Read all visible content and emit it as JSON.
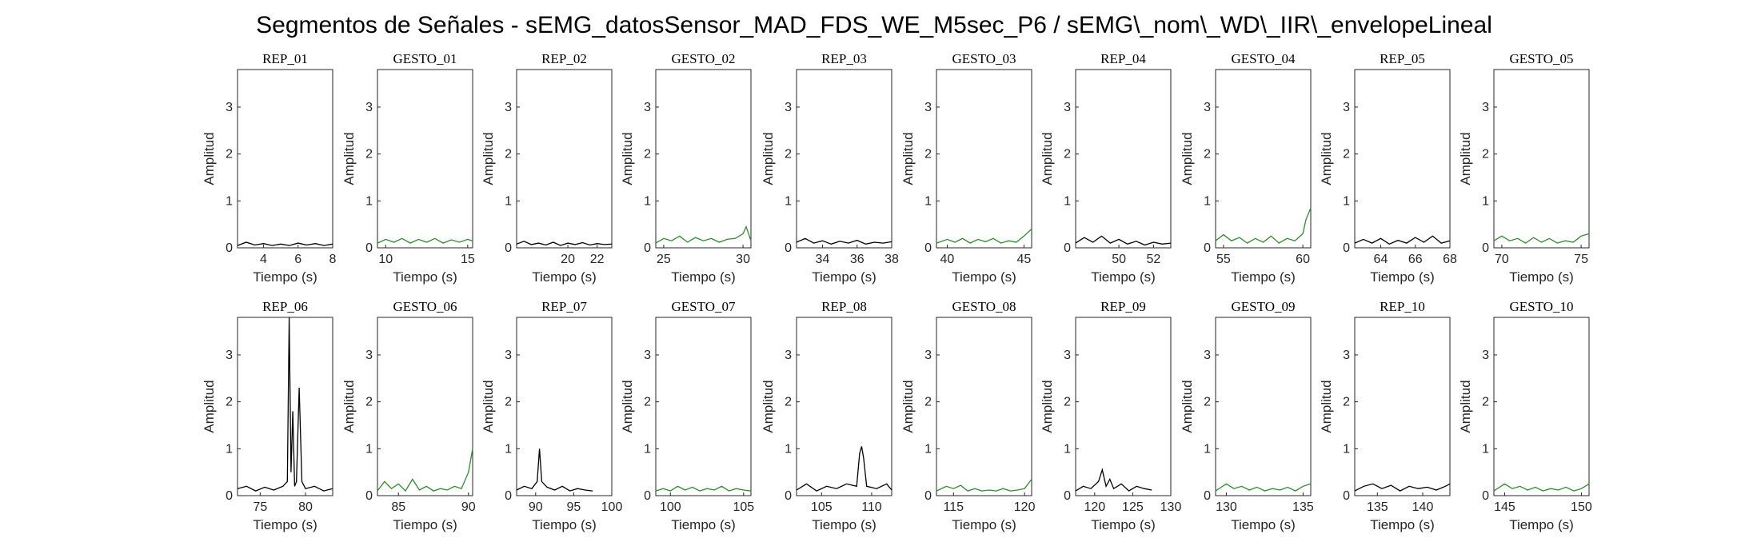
{
  "figure_title": "Segmentos de Señales - sEMG_datosSensor_MAD_FDS_WE_M5sec_P6 / sEMG\\_nom\\_WD\\_IIR\\_envelopeLineal",
  "colors": {
    "rep": "#000000",
    "gesto": "#2e8b2e",
    "axes": "#262626"
  },
  "chart_data": [
    {
      "type": "line",
      "title": "REP_01",
      "xlabel": "Tiempo (s)",
      "ylabel": "Amplitud",
      "xlim": [
        2.5,
        8
      ],
      "ylim": [
        0,
        3.8
      ],
      "xticks": [
        4,
        6,
        8
      ],
      "yticks": [
        0,
        1,
        2,
        3
      ],
      "color": "rep",
      "x": [
        2.5,
        3.0,
        3.5,
        4.0,
        4.5,
        5.0,
        5.5,
        6.0,
        6.5,
        7.0,
        7.5,
        8.0
      ],
      "y": [
        0.05,
        0.12,
        0.06,
        0.09,
        0.05,
        0.08,
        0.05,
        0.1,
        0.06,
        0.09,
        0.05,
        0.08
      ]
    },
    {
      "type": "line",
      "title": "GESTO_01",
      "xlabel": "Tiempo (s)",
      "ylabel": "Amplitud",
      "xlim": [
        9.5,
        15.3
      ],
      "ylim": [
        0,
        3.8
      ],
      "xticks": [
        10,
        15
      ],
      "yticks": [
        0,
        1,
        2,
        3
      ],
      "color": "gesto",
      "x": [
        9.5,
        10.0,
        10.5,
        11.0,
        11.5,
        12.0,
        12.5,
        13.0,
        13.5,
        14.0,
        14.5,
        15.0,
        15.3
      ],
      "y": [
        0.1,
        0.18,
        0.12,
        0.2,
        0.1,
        0.18,
        0.12,
        0.2,
        0.1,
        0.17,
        0.12,
        0.18,
        0.15
      ]
    },
    {
      "type": "line",
      "title": "REP_02",
      "xlabel": "Tiempo (s)",
      "ylabel": "Amplitud",
      "xlim": [
        16.5,
        23
      ],
      "ylim": [
        0,
        3.8
      ],
      "xticks": [
        20,
        22
      ],
      "yticks": [
        0,
        1,
        2,
        3
      ],
      "color": "rep",
      "x": [
        16.5,
        17.0,
        17.5,
        18.0,
        18.5,
        19.0,
        19.5,
        20.0,
        20.5,
        21.0,
        21.5,
        22.0,
        22.5,
        23.0
      ],
      "y": [
        0.08,
        0.14,
        0.07,
        0.1,
        0.06,
        0.12,
        0.05,
        0.1,
        0.07,
        0.11,
        0.06,
        0.09,
        0.07,
        0.08
      ]
    },
    {
      "type": "line",
      "title": "GESTO_02",
      "xlabel": "Tiempo (s)",
      "ylabel": "Amplitud",
      "xlim": [
        24.5,
        30.5
      ],
      "ylim": [
        0,
        3.8
      ],
      "xticks": [
        25,
        30
      ],
      "yticks": [
        0,
        1,
        2,
        3
      ],
      "color": "gesto",
      "x": [
        24.5,
        25.0,
        25.5,
        26.0,
        26.5,
        27.0,
        27.5,
        28.0,
        28.5,
        29.0,
        29.5,
        30.0,
        30.2,
        30.5
      ],
      "y": [
        0.1,
        0.2,
        0.15,
        0.25,
        0.12,
        0.22,
        0.15,
        0.2,
        0.12,
        0.18,
        0.2,
        0.3,
        0.45,
        0.15
      ]
    },
    {
      "type": "line",
      "title": "REP_03",
      "xlabel": "Tiempo (s)",
      "ylabel": "Amplitud",
      "xlim": [
        32.5,
        38
      ],
      "ylim": [
        0,
        3.8
      ],
      "xticks": [
        34,
        36,
        38
      ],
      "yticks": [
        0,
        1,
        2,
        3
      ],
      "color": "rep",
      "x": [
        32.5,
        33.0,
        33.5,
        34.0,
        34.5,
        35.0,
        35.5,
        36.0,
        36.5,
        37.0,
        37.5,
        38.0
      ],
      "y": [
        0.12,
        0.2,
        0.1,
        0.15,
        0.08,
        0.14,
        0.1,
        0.16,
        0.08,
        0.12,
        0.1,
        0.13
      ]
    },
    {
      "type": "line",
      "title": "GESTO_03",
      "xlabel": "Tiempo (s)",
      "ylabel": "Amplitud",
      "xlim": [
        39.3,
        45.5
      ],
      "ylim": [
        0,
        3.8
      ],
      "xticks": [
        40,
        45
      ],
      "yticks": [
        0,
        1,
        2,
        3
      ],
      "color": "gesto",
      "x": [
        39.3,
        40.0,
        40.5,
        41.0,
        41.5,
        42.0,
        42.5,
        43.0,
        43.5,
        44.0,
        44.5,
        45.0,
        45.5
      ],
      "y": [
        0.1,
        0.18,
        0.12,
        0.2,
        0.1,
        0.18,
        0.13,
        0.2,
        0.1,
        0.15,
        0.12,
        0.25,
        0.4
      ]
    },
    {
      "type": "line",
      "title": "REP_04",
      "xlabel": "Tiempo (s)",
      "ylabel": "Amplitud",
      "xlim": [
        47.5,
        53
      ],
      "ylim": [
        0,
        3.8
      ],
      "xticks": [
        50,
        52
      ],
      "yticks": [
        0,
        1,
        2,
        3
      ],
      "color": "rep",
      "x": [
        47.5,
        48.0,
        48.5,
        49.0,
        49.5,
        50.0,
        50.5,
        51.0,
        51.5,
        52.0,
        52.5,
        53.0
      ],
      "y": [
        0.1,
        0.22,
        0.12,
        0.25,
        0.1,
        0.18,
        0.08,
        0.14,
        0.06,
        0.12,
        0.08,
        0.1
      ]
    },
    {
      "type": "line",
      "title": "GESTO_04",
      "xlabel": "Tiempo (s)",
      "ylabel": "Amplitud",
      "xlim": [
        54.5,
        60.5
      ],
      "ylim": [
        0,
        3.8
      ],
      "xticks": [
        55,
        60
      ],
      "yticks": [
        0,
        1,
        2,
        3
      ],
      "color": "gesto",
      "x": [
        54.5,
        55.0,
        55.5,
        56.0,
        56.5,
        57.0,
        57.5,
        58.0,
        58.5,
        59.0,
        59.5,
        60.0,
        60.2,
        60.5
      ],
      "y": [
        0.15,
        0.28,
        0.15,
        0.22,
        0.1,
        0.2,
        0.12,
        0.25,
        0.1,
        0.2,
        0.15,
        0.3,
        0.6,
        0.85
      ]
    },
    {
      "type": "line",
      "title": "REP_05",
      "xlabel": "Tiempo (s)",
      "ylabel": "Amplitud",
      "xlim": [
        62.5,
        68
      ],
      "ylim": [
        0,
        3.8
      ],
      "xticks": [
        64,
        66,
        68
      ],
      "yticks": [
        0,
        1,
        2,
        3
      ],
      "color": "rep",
      "x": [
        62.5,
        63.0,
        63.5,
        64.0,
        64.5,
        65.0,
        65.5,
        66.0,
        66.5,
        67.0,
        67.5,
        68.0
      ],
      "y": [
        0.1,
        0.18,
        0.1,
        0.2,
        0.08,
        0.16,
        0.1,
        0.22,
        0.12,
        0.25,
        0.1,
        0.15
      ]
    },
    {
      "type": "line",
      "title": "GESTO_05",
      "xlabel": "Tiempo (s)",
      "ylabel": "Amplitud",
      "xlim": [
        69.5,
        75.5
      ],
      "ylim": [
        0,
        3.8
      ],
      "xticks": [
        70,
        75
      ],
      "yticks": [
        0,
        1,
        2,
        3
      ],
      "color": "gesto",
      "x": [
        69.5,
        70.0,
        70.5,
        71.0,
        71.5,
        72.0,
        72.5,
        73.0,
        73.5,
        74.0,
        74.5,
        75.0,
        75.5
      ],
      "y": [
        0.15,
        0.25,
        0.15,
        0.2,
        0.1,
        0.22,
        0.12,
        0.2,
        0.1,
        0.15,
        0.12,
        0.25,
        0.3
      ]
    },
    {
      "type": "line",
      "title": "REP_06",
      "xlabel": "Tiempo (s)",
      "ylabel": "Amplitud",
      "xlim": [
        72.5,
        83
      ],
      "ylim": [
        0,
        3.8
      ],
      "xticks": [
        75,
        80
      ],
      "yticks": [
        0,
        1,
        2,
        3
      ],
      "color": "rep",
      "x": [
        72.5,
        73.5,
        74.5,
        75.5,
        76.5,
        77.5,
        78.0,
        78.2,
        78.4,
        78.6,
        78.8,
        79.0,
        79.3,
        79.6,
        80.0,
        81.0,
        82.0,
        83.0
      ],
      "y": [
        0.15,
        0.2,
        0.1,
        0.18,
        0.12,
        0.2,
        0.3,
        3.8,
        0.5,
        1.8,
        0.2,
        0.3,
        2.3,
        0.3,
        0.15,
        0.2,
        0.1,
        0.15
      ]
    },
    {
      "type": "line",
      "title": "GESTO_06",
      "xlabel": "Tiempo (s)",
      "ylabel": "Amplitud",
      "xlim": [
        83.5,
        90.3
      ],
      "ylim": [
        0,
        3.8
      ],
      "xticks": [
        85,
        90
      ],
      "yticks": [
        0,
        1,
        2,
        3
      ],
      "color": "gesto",
      "x": [
        83.5,
        84.0,
        84.5,
        85.0,
        85.5,
        86.0,
        86.5,
        87.0,
        87.5,
        88.0,
        88.5,
        89.0,
        89.5,
        90.0,
        90.3
      ],
      "y": [
        0.1,
        0.3,
        0.15,
        0.25,
        0.1,
        0.35,
        0.12,
        0.2,
        0.1,
        0.15,
        0.12,
        0.2,
        0.15,
        0.5,
        1.0
      ]
    },
    {
      "type": "line",
      "title": "REP_07",
      "xlabel": "Tiempo (s)",
      "ylabel": "Amplitud",
      "xlim": [
        87.5,
        100
      ],
      "ylim": [
        0,
        3.8
      ],
      "xticks": [
        90,
        95,
        100
      ],
      "yticks": [
        0,
        1,
        2,
        3
      ],
      "color": "rep",
      "x": [
        87.5,
        88.5,
        89.5,
        90.2,
        90.5,
        90.8,
        91.5,
        92.5,
        93.5,
        94.5,
        95.5,
        96.5,
        97.5
      ],
      "y": [
        0.12,
        0.2,
        0.15,
        0.3,
        1.0,
        0.3,
        0.18,
        0.12,
        0.2,
        0.1,
        0.15,
        0.12,
        0.1
      ]
    },
    {
      "type": "line",
      "title": "GESTO_07",
      "xlabel": "Tiempo (s)",
      "ylabel": "Amplitud",
      "xlim": [
        99,
        105.5
      ],
      "ylim": [
        0,
        3.8
      ],
      "xticks": [
        100,
        105
      ],
      "yticks": [
        0,
        1,
        2,
        3
      ],
      "color": "gesto",
      "x": [
        99.0,
        99.5,
        100.0,
        100.5,
        101.0,
        101.5,
        102.0,
        102.5,
        103.0,
        103.5,
        104.0,
        104.5,
        105.0,
        105.5
      ],
      "y": [
        0.1,
        0.15,
        0.1,
        0.2,
        0.12,
        0.18,
        0.1,
        0.15,
        0.12,
        0.2,
        0.1,
        0.15,
        0.12,
        0.1
      ]
    },
    {
      "type": "line",
      "title": "REP_08",
      "xlabel": "Tiempo (s)",
      "ylabel": "Amplitud",
      "xlim": [
        102.5,
        112
      ],
      "ylim": [
        0,
        3.8
      ],
      "xticks": [
        105,
        110
      ],
      "yticks": [
        0,
        1,
        2,
        3
      ],
      "color": "rep",
      "x": [
        102.5,
        103.5,
        104.5,
        105.5,
        106.5,
        107.5,
        108.5,
        108.8,
        109.0,
        109.2,
        109.5,
        110.5,
        111.5,
        112.0
      ],
      "y": [
        0.12,
        0.25,
        0.1,
        0.2,
        0.15,
        0.25,
        0.2,
        0.9,
        1.05,
        0.8,
        0.2,
        0.15,
        0.25,
        0.12
      ]
    },
    {
      "type": "line",
      "title": "GESTO_08",
      "xlabel": "Tiempo (s)",
      "ylabel": "Amplitud",
      "xlim": [
        113.8,
        120.5
      ],
      "ylim": [
        0,
        3.8
      ],
      "xticks": [
        115,
        120
      ],
      "yticks": [
        0,
        1,
        2,
        3
      ],
      "color": "gesto",
      "x": [
        113.8,
        114.5,
        115.0,
        115.5,
        116.0,
        116.5,
        117.0,
        117.5,
        118.0,
        118.5,
        119.0,
        119.5,
        120.0,
        120.5
      ],
      "y": [
        0.1,
        0.2,
        0.15,
        0.22,
        0.1,
        0.15,
        0.1,
        0.12,
        0.1,
        0.15,
        0.1,
        0.12,
        0.15,
        0.35
      ]
    },
    {
      "type": "line",
      "title": "REP_09",
      "xlabel": "Tiempo (s)",
      "ylabel": "Amplitud",
      "xlim": [
        117.5,
        130
      ],
      "ylim": [
        0,
        3.8
      ],
      "xticks": [
        120,
        125,
        130
      ],
      "yticks": [
        0,
        1,
        2,
        3
      ],
      "color": "rep",
      "x": [
        117.5,
        118.5,
        119.5,
        120.5,
        121.0,
        121.5,
        122.0,
        122.5,
        123.5,
        124.5,
        125.5,
        126.5,
        127.5
      ],
      "y": [
        0.1,
        0.2,
        0.15,
        0.3,
        0.55,
        0.2,
        0.35,
        0.15,
        0.25,
        0.1,
        0.2,
        0.15,
        0.12
      ]
    },
    {
      "type": "line",
      "title": "GESTO_09",
      "xlabel": "Tiempo (s)",
      "ylabel": "Amplitud",
      "xlim": [
        129.3,
        135.5
      ],
      "ylim": [
        0,
        3.8
      ],
      "xticks": [
        130,
        135
      ],
      "yticks": [
        0,
        1,
        2,
        3
      ],
      "color": "gesto",
      "x": [
        129.3,
        130.0,
        130.5,
        131.0,
        131.5,
        132.0,
        132.5,
        133.0,
        133.5,
        134.0,
        134.5,
        135.0,
        135.5
      ],
      "y": [
        0.1,
        0.25,
        0.15,
        0.2,
        0.12,
        0.18,
        0.1,
        0.15,
        0.12,
        0.18,
        0.1,
        0.2,
        0.25
      ]
    },
    {
      "type": "line",
      "title": "REP_10",
      "xlabel": "Tiempo (s)",
      "ylabel": "Amplitud",
      "xlim": [
        132.5,
        143
      ],
      "ylim": [
        0,
        3.8
      ],
      "xticks": [
        135,
        140
      ],
      "yticks": [
        0,
        1,
        2,
        3
      ],
      "color": "rep",
      "x": [
        132.5,
        133.5,
        134.5,
        135.5,
        136.5,
        137.5,
        138.5,
        139.5,
        140.5,
        141.5,
        142.5,
        143.0
      ],
      "y": [
        0.1,
        0.2,
        0.25,
        0.15,
        0.22,
        0.1,
        0.2,
        0.15,
        0.18,
        0.12,
        0.2,
        0.25
      ]
    },
    {
      "type": "line",
      "title": "GESTO_10",
      "xlabel": "Tiempo (s)",
      "ylabel": "Amplitud",
      "xlim": [
        144.3,
        150.5
      ],
      "ylim": [
        0,
        3.8
      ],
      "xticks": [
        145,
        150
      ],
      "yticks": [
        0,
        1,
        2,
        3
      ],
      "color": "gesto",
      "x": [
        144.3,
        145.0,
        145.5,
        146.0,
        146.5,
        147.0,
        147.5,
        148.0,
        148.5,
        149.0,
        149.5,
        150.0,
        150.5
      ],
      "y": [
        0.1,
        0.25,
        0.15,
        0.2,
        0.12,
        0.18,
        0.1,
        0.15,
        0.12,
        0.18,
        0.1,
        0.15,
        0.25
      ]
    }
  ]
}
